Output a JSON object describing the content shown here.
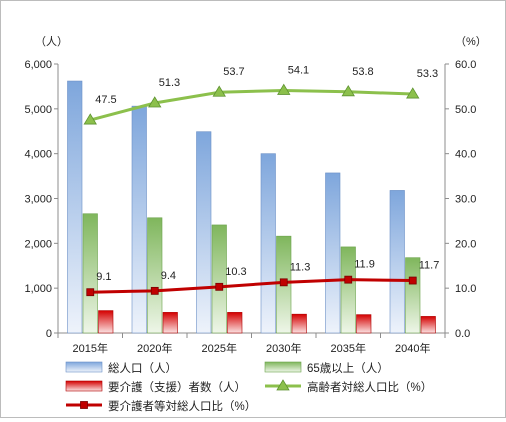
{
  "chart_data": {
    "type": "bar",
    "title": "",
    "categories": [
      "2015年",
      "2020年",
      "2025年",
      "2030年",
      "2035年",
      "2040年"
    ],
    "y_left": {
      "unit": "（人）",
      "ylim": [
        0,
        6000
      ],
      "ticks": [
        "0",
        "1,000",
        "2,000",
        "3,000",
        "4,000",
        "5,000",
        "6,000"
      ]
    },
    "y_right": {
      "unit": "（%）",
      "ylim": [
        0,
        60
      ],
      "ticks": [
        "0.0",
        "10.0",
        "20.0",
        "30.0",
        "40.0",
        "50.0",
        "60.0"
      ]
    },
    "grid": false,
    "legend_position": "bottom",
    "series": [
      {
        "name": "総人口（人）",
        "kind": "bar",
        "axis": "left",
        "color": "#8eb2e0",
        "values": [
          5620,
          5060,
          4490,
          4000,
          3570,
          3180
        ]
      },
      {
        "name": "65歳以上（人）",
        "kind": "bar",
        "axis": "left",
        "color": "#8cc06a",
        "values": [
          2660,
          2570,
          2410,
          2160,
          1920,
          1680
        ]
      },
      {
        "name": "要介護（支援）者数（人）",
        "kind": "bar",
        "axis": "left",
        "color": "#e02020",
        "values": [
          500,
          460,
          460,
          420,
          410,
          370
        ]
      },
      {
        "name": "高齢者対総人口比（%）",
        "kind": "line",
        "axis": "right",
        "color": "#8cc04c",
        "marker": "triangle",
        "values": [
          47.5,
          51.3,
          53.7,
          54.1,
          53.8,
          53.3
        ],
        "labels": [
          "47.5",
          "51.3",
          "53.7",
          "54.1",
          "53.8",
          "53.3"
        ]
      },
      {
        "name": "要介護者等対総人口比（%）",
        "kind": "line",
        "axis": "right",
        "color": "#c00000",
        "marker": "square",
        "values": [
          9.1,
          9.4,
          10.3,
          11.3,
          11.9,
          11.7
        ],
        "labels": [
          "9.1",
          "9.4",
          "10.3",
          "11.3",
          "11.9",
          "11.7"
        ]
      }
    ]
  }
}
